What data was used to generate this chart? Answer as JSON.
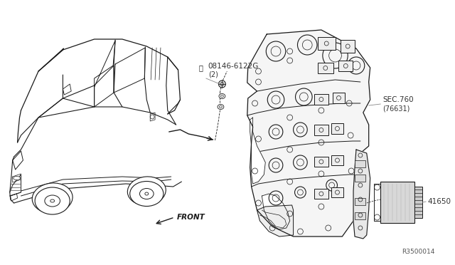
{
  "bg_color": "#ffffff",
  "diagram_id": "R3500014",
  "car_color": "#1a1a1a",
  "label_color": "#333333",
  "leader_color": "#888888",
  "part1_label": "08146-6122G",
  "part1_qty": "(2)",
  "part2_label": "SEC.760",
  "part2_sub": "(76631)",
  "part3_label": "41650",
  "front_text": "FRONT"
}
